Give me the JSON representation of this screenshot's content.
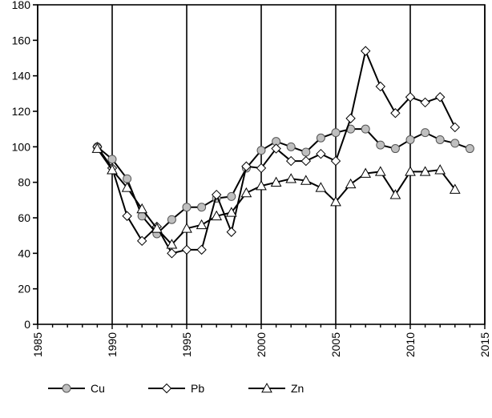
{
  "chart_data": {
    "type": "line",
    "title": "",
    "xlabel": "",
    "ylabel": "",
    "xlim": [
      1985,
      2015
    ],
    "ylim": [
      0,
      180
    ],
    "x_ticks": [
      1985,
      1990,
      1995,
      2000,
      2005,
      2010,
      2015
    ],
    "x_tick_labels": [
      "1985",
      "1990",
      "1995",
      "2000",
      "2005",
      "2010",
      "2015"
    ],
    "y_ticks": [
      0,
      20,
      40,
      60,
      80,
      100,
      120,
      140,
      160,
      180
    ],
    "y_tick_labels": [
      "0",
      "20",
      "40",
      "60",
      "80",
      "100",
      "120",
      "140",
      "160",
      "180"
    ],
    "grid": "vertical major lines",
    "legend_position": "bottom",
    "series": [
      {
        "name": "Cu",
        "marker": "circle",
        "color": "#000000",
        "marker_fill": "#bfbfbf",
        "points": [
          [
            1989,
            100
          ],
          [
            1990,
            93
          ],
          [
            1991,
            82
          ],
          [
            1992,
            61
          ],
          [
            1993,
            51
          ],
          [
            1994,
            59
          ],
          [
            1995,
            66
          ],
          [
            1996,
            66
          ],
          [
            1997,
            71
          ],
          [
            1998,
            72
          ],
          [
            1999,
            88
          ],
          [
            2000,
            98
          ],
          [
            2001,
            103
          ],
          [
            2002,
            100
          ],
          [
            2003,
            97
          ],
          [
            2004,
            105
          ],
          [
            2005,
            108
          ],
          [
            2006,
            110
          ],
          [
            2007,
            110
          ],
          [
            2008,
            101
          ],
          [
            2009,
            99
          ],
          [
            2010,
            104
          ],
          [
            2011,
            108
          ],
          [
            2012,
            104
          ],
          [
            2013,
            102
          ],
          [
            2014,
            99
          ]
        ]
      },
      {
        "name": "Pb",
        "marker": "diamond",
        "color": "#000000",
        "marker_fill": "#ffffff",
        "points": [
          [
            1989,
            100
          ],
          [
            1990,
            88
          ],
          [
            1991,
            61
          ],
          [
            1992,
            47
          ],
          [
            1993,
            55
          ],
          [
            1994,
            40
          ],
          [
            1995,
            42
          ],
          [
            1996,
            42
          ],
          [
            1997,
            73
          ],
          [
            1998,
            52
          ],
          [
            1999,
            89
          ],
          [
            2000,
            88
          ],
          [
            2001,
            99
          ],
          [
            2002,
            92
          ],
          [
            2003,
            92
          ],
          [
            2004,
            96
          ],
          [
            2005,
            92
          ],
          [
            2006,
            116
          ],
          [
            2007,
            154
          ],
          [
            2008,
            134
          ],
          [
            2009,
            119
          ],
          [
            2010,
            128
          ],
          [
            2011,
            125
          ],
          [
            2012,
            128
          ],
          [
            2013,
            111
          ]
        ]
      },
      {
        "name": "Zn",
        "marker": "triangle",
        "color": "#000000",
        "marker_fill": "#ffffff",
        "points": [
          [
            1989,
            99
          ],
          [
            1990,
            87
          ],
          [
            1991,
            77
          ],
          [
            1992,
            65
          ],
          [
            1993,
            54
          ],
          [
            1994,
            45
          ],
          [
            1995,
            54
          ],
          [
            1996,
            56
          ],
          [
            1997,
            61
          ],
          [
            1998,
            63
          ],
          [
            1999,
            74
          ],
          [
            2000,
            78
          ],
          [
            2001,
            80
          ],
          [
            2002,
            82
          ],
          [
            2003,
            81
          ],
          [
            2004,
            77
          ],
          [
            2005,
            69
          ],
          [
            2006,
            79
          ],
          [
            2007,
            85
          ],
          [
            2008,
            86
          ],
          [
            2009,
            73
          ],
          [
            2010,
            86
          ],
          [
            2011,
            86
          ],
          [
            2012,
            87
          ],
          [
            2013,
            76
          ]
        ]
      }
    ]
  }
}
